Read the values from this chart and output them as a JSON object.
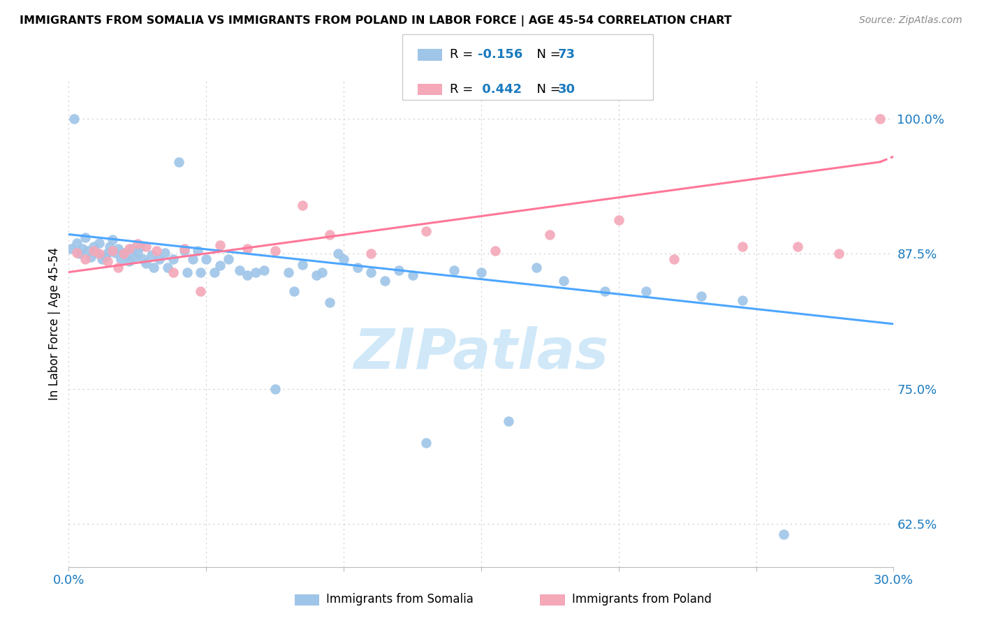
{
  "title": "IMMIGRANTS FROM SOMALIA VS IMMIGRANTS FROM POLAND IN LABOR FORCE | AGE 45-54 CORRELATION CHART",
  "source": "Source: ZipAtlas.com",
  "ylabel": "In Labor Force | Age 45-54",
  "xlim": [
    0.0,
    0.3
  ],
  "ylim": [
    0.585,
    1.035
  ],
  "x_ticks": [
    0.0,
    0.05,
    0.1,
    0.15,
    0.2,
    0.25,
    0.3
  ],
  "y_ticks": [
    0.625,
    0.75,
    0.875,
    1.0
  ],
  "y_tick_labels": [
    "62.5%",
    "75.0%",
    "87.5%",
    "100.0%"
  ],
  "somalia_color": "#9fc5e8",
  "poland_color": "#f4a8b8",
  "somalia_R": -0.156,
  "somalia_N": 73,
  "poland_R": 0.442,
  "poland_N": 30,
  "blue_color": "#1a7abf",
  "watermark_color": "#d0e8f8",
  "somalia_x": [
    0.001,
    0.002,
    0.003,
    0.004,
    0.005,
    0.006,
    0.007,
    0.008,
    0.009,
    0.01,
    0.011,
    0.012,
    0.013,
    0.014,
    0.015,
    0.016,
    0.017,
    0.018,
    0.019,
    0.02,
    0.021,
    0.022,
    0.023,
    0.024,
    0.025,
    0.026,
    0.027,
    0.028,
    0.03,
    0.031,
    0.033,
    0.035,
    0.036,
    0.038,
    0.04,
    0.042,
    0.043,
    0.045,
    0.047,
    0.048,
    0.05,
    0.053,
    0.055,
    0.058,
    0.062,
    0.065,
    0.068,
    0.071,
    0.075,
    0.08,
    0.082,
    0.085,
    0.09,
    0.092,
    0.095,
    0.098,
    0.1,
    0.105,
    0.11,
    0.115,
    0.12,
    0.125,
    0.13,
    0.14,
    0.15,
    0.16,
    0.17,
    0.18,
    0.195,
    0.21,
    0.23,
    0.245,
    0.26
  ],
  "somalia_y": [
    0.88,
    1.0,
    0.885,
    0.875,
    0.88,
    0.89,
    0.878,
    0.872,
    0.882,
    0.876,
    0.885,
    0.87,
    0.872,
    0.876,
    0.882,
    0.888,
    0.876,
    0.88,
    0.87,
    0.876,
    0.874,
    0.868,
    0.88,
    0.872,
    0.876,
    0.882,
    0.87,
    0.866,
    0.874,
    0.862,
    0.87,
    0.876,
    0.862,
    0.87,
    0.96,
    0.878,
    0.858,
    0.87,
    0.878,
    0.858,
    0.87,
    0.858,
    0.864,
    0.87,
    0.86,
    0.855,
    0.858,
    0.86,
    0.75,
    0.858,
    0.84,
    0.865,
    0.855,
    0.858,
    0.83,
    0.875,
    0.87,
    0.862,
    0.858,
    0.85,
    0.86,
    0.855,
    0.7,
    0.86,
    0.858,
    0.72,
    0.862,
    0.85,
    0.84,
    0.84,
    0.836,
    0.832,
    0.615
  ],
  "poland_x": [
    0.003,
    0.006,
    0.009,
    0.011,
    0.014,
    0.016,
    0.018,
    0.02,
    0.022,
    0.025,
    0.028,
    0.032,
    0.038,
    0.042,
    0.048,
    0.055,
    0.065,
    0.075,
    0.085,
    0.095,
    0.11,
    0.13,
    0.155,
    0.175,
    0.2,
    0.22,
    0.245,
    0.265,
    0.28,
    0.295
  ],
  "poland_y": [
    0.876,
    0.87,
    0.878,
    0.875,
    0.868,
    0.878,
    0.862,
    0.875,
    0.88,
    0.884,
    0.882,
    0.878,
    0.858,
    0.88,
    0.84,
    0.883,
    0.88,
    0.878,
    0.92,
    0.893,
    0.875,
    0.896,
    0.878,
    0.893,
    0.906,
    0.87,
    0.882,
    0.882,
    0.875,
    1.0
  ],
  "trend_somalia_x0": 0.0,
  "trend_somalia_x1": 0.3,
  "trend_somalia_y0": 0.893,
  "trend_somalia_y1": 0.81,
  "trend_poland_solid_x0": 0.0,
  "trend_poland_solid_x1": 0.295,
  "trend_poland_y0": 0.858,
  "trend_poland_y1": 0.96,
  "trend_poland_dash_x0": 0.295,
  "trend_poland_dash_x1": 0.3,
  "trend_poland_dash_y0": 0.96,
  "trend_poland_dash_y1": 0.965
}
